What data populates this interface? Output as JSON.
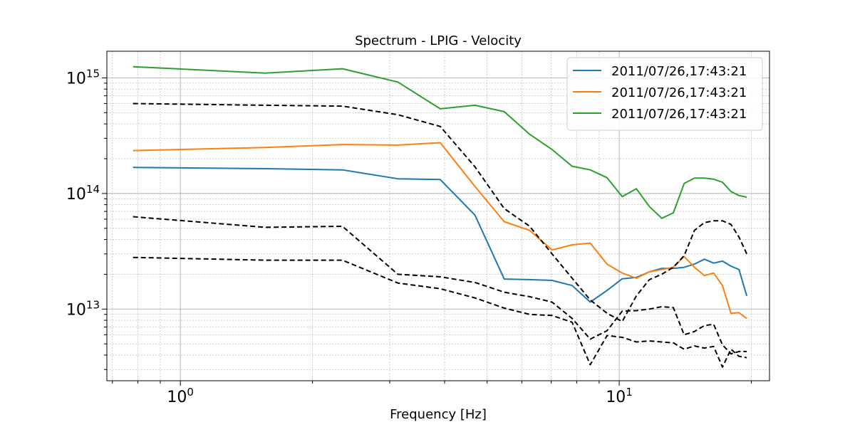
{
  "chart_data": {
    "type": "line",
    "title": "Spectrum - LPIG - Velocity",
    "xlabel": "Frequency [Hz]",
    "ylabel": "",
    "xscale": "log",
    "yscale": "log",
    "xlim": [
      0.68,
      22
    ],
    "ylim": [
      2400000000000.0,
      1700000000000000.0
    ],
    "x_ticks": [
      {
        "value": 1,
        "label": "10^0"
      },
      {
        "value": 10,
        "label": "10^1"
      }
    ],
    "y_ticks": [
      {
        "value": 10000000000000.0,
        "label": "10^13"
      },
      {
        "value": 100000000000000.0,
        "label": "10^14"
      },
      {
        "value": 1000000000000000.0,
        "label": "10^15"
      }
    ],
    "grid": "both, major and minor",
    "legend_position": "top-right",
    "series": [
      {
        "name": "2011/07/26,17:43:21",
        "color": "#1f77b4",
        "style": "solid",
        "x": [
          0.78,
          1.56,
          2.34,
          3.13,
          3.91,
          4.69,
          5.47,
          6.25,
          7.03,
          7.81,
          8.59,
          9.38,
          10.16,
          10.94,
          11.72,
          12.5,
          13.28,
          14.06,
          14.84,
          15.63,
          16.41,
          17.19,
          17.97,
          18.75,
          19.53
        ],
        "y": [
          168000000000000.0,
          164000000000000.0,
          160000000000000.0,
          134000000000000.0,
          132000000000000.0,
          65000000000000.0,
          18200000000000.0,
          18000000000000.0,
          17700000000000.0,
          16000000000000.0,
          11500000000000.0,
          14500000000000.0,
          18300000000000.0,
          18800000000000.0,
          21000000000000.0,
          22500000000000.0,
          22500000000000.0,
          23000000000000.0,
          24500000000000.0,
          27000000000000.0,
          25000000000000.0,
          26000000000000.0,
          23500000000000.0,
          22000000000000.0,
          13000000000000.0
        ]
      },
      {
        "name": "2011/07/26,17:43:21",
        "color": "#ff7f0e",
        "style": "solid",
        "x": [
          0.78,
          1.56,
          2.34,
          3.13,
          3.91,
          4.69,
          5.47,
          6.25,
          7.03,
          7.81,
          8.59,
          9.38,
          10.16,
          10.94,
          11.72,
          12.5,
          13.28,
          14.06,
          14.84,
          15.63,
          16.41,
          17.19,
          17.97,
          18.75,
          19.53
        ],
        "y": [
          235000000000000.0,
          250000000000000.0,
          265000000000000.0,
          262000000000000.0,
          275000000000000.0,
          115000000000000.0,
          57000000000000.0,
          48000000000000.0,
          32500000000000.0,
          36000000000000.0,
          37200000000000.0,
          24500000000000.0,
          20500000000000.0,
          18500000000000.0,
          21000000000000.0,
          22000000000000.0,
          23000000000000.0,
          28500000000000.0,
          23000000000000.0,
          19500000000000.0,
          20500000000000.0,
          16000000000000.0,
          9200000000000.0,
          9300000000000.0,
          8300000000000.0
        ]
      },
      {
        "name": "2011/07/26,17:43:21",
        "color": "#2ca02c",
        "style": "solid",
        "x": [
          0.78,
          1.56,
          2.34,
          3.13,
          3.91,
          4.69,
          5.47,
          6.25,
          7.03,
          7.81,
          8.59,
          9.38,
          10.16,
          10.94,
          11.72,
          12.5,
          13.28,
          14.06,
          14.84,
          15.63,
          16.41,
          17.19,
          17.97,
          18.75,
          19.53
        ],
        "y": [
          1250000000000000.0,
          1100000000000000.0,
          1200000000000000.0,
          920000000000000.0,
          540000000000000.0,
          580000000000000.0,
          510000000000000.0,
          325000000000000.0,
          240000000000000.0,
          172000000000000.0,
          160000000000000.0,
          137000000000000.0,
          94000000000000.0,
          110000000000000.0,
          77000000000000.0,
          61000000000000.0,
          68000000000000.0,
          122000000000000.0,
          136000000000000.0,
          136000000000000.0,
          133000000000000.0,
          125000000000000.0,
          104000000000000.0,
          96000000000000.0,
          93000000000000.0
        ]
      },
      {
        "color": "#000000",
        "style": "dashed",
        "x": [
          0.78,
          1.56,
          2.34,
          3.13,
          3.91,
          4.69,
          5.47,
          6.25,
          7.03,
          7.81,
          8.59,
          9.38,
          10.16,
          10.94,
          11.72,
          12.5,
          13.28,
          14.06,
          14.84,
          15.63,
          16.41,
          17.19,
          17.97,
          18.75,
          19.53
        ],
        "y": [
          600000000000000.0,
          580000000000000.0,
          570000000000000.0,
          480000000000000.0,
          380000000000000.0,
          170000000000000.0,
          74000000000000.0,
          52000000000000.0,
          30000000000000.0,
          18500000000000.0,
          12000000000000.0,
          9200000000000.0,
          7800000000000.0,
          13000000000000.0,
          18000000000000.0,
          20000000000000.0,
          23000000000000.0,
          29000000000000.0,
          48000000000000.0,
          56000000000000.0,
          58000000000000.0,
          58000000000000.0,
          54000000000000.0,
          42000000000000.0,
          30000000000000.0
        ]
      },
      {
        "color": "#000000",
        "style": "dashed",
        "x": [
          0.78,
          1.56,
          2.34,
          3.13,
          3.91,
          4.69,
          5.47,
          6.25,
          7.03,
          7.81,
          8.59,
          9.38,
          10.16,
          10.94,
          11.72,
          12.5,
          13.28,
          14.06,
          14.84,
          15.63,
          16.41,
          17.19,
          17.97,
          18.75,
          19.53
        ],
        "y": [
          63000000000000.0,
          51000000000000.0,
          52000000000000.0,
          20000000000000.0,
          19000000000000.0,
          17000000000000.0,
          14000000000000.0,
          12800000000000.0,
          11500000000000.0,
          8300000000000.0,
          5500000000000.0,
          6500000000000.0,
          9600000000000.0,
          9700000000000.0,
          10000000000000.0,
          10500000000000.0,
          10300000000000.0,
          6000000000000.0,
          6400000000000.0,
          7200000000000.0,
          7400000000000.0,
          4900000000000.0,
          4100000000000.0,
          4300000000000.0,
          4300000000000.0
        ]
      },
      {
        "color": "#000000",
        "style": "dashed",
        "x": [
          0.78,
          1.56,
          2.34,
          3.13,
          3.91,
          4.69,
          5.47,
          6.25,
          7.03,
          7.81,
          8.59,
          9.38,
          10.16,
          10.94,
          11.72,
          12.5,
          13.28,
          14.06,
          14.84,
          15.63,
          16.41,
          17.19,
          17.97,
          18.75,
          19.53
        ],
        "y": [
          28000000000000.0,
          26500000000000.0,
          26500000000000.0,
          16800000000000.0,
          15000000000000.0,
          12500000000000.0,
          10200000000000.0,
          9000000000000.0,
          8800000000000.0,
          7700000000000.0,
          3300000000000.0,
          5900000000000.0,
          5700000000000.0,
          5200000000000.0,
          5300000000000.0,
          5200000000000.0,
          5100000000000.0,
          4500000000000.0,
          4800000000000.0,
          4600000000000.0,
          4750000000000.0,
          3150000000000.0,
          4500000000000.0,
          3900000000000.0,
          3800000000000.0
        ]
      }
    ]
  }
}
